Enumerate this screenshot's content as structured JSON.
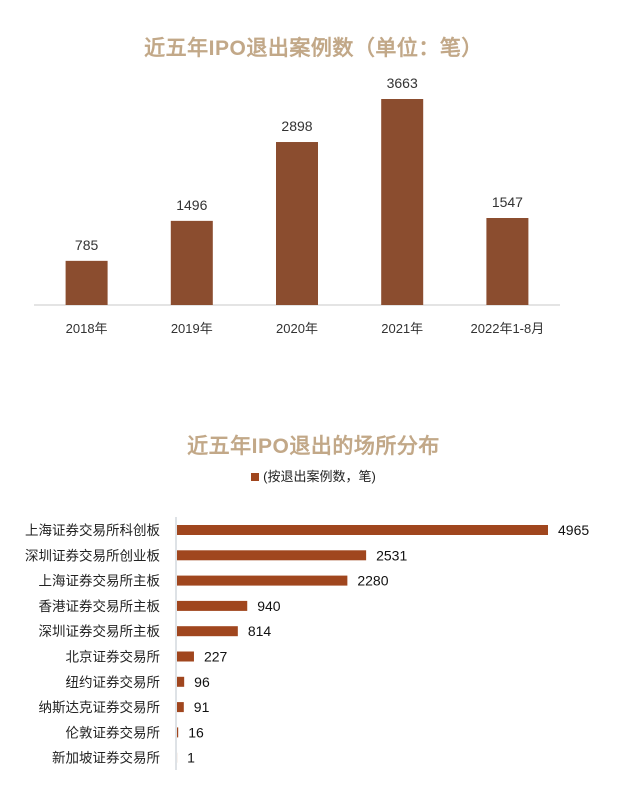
{
  "chart_data": [
    {
      "type": "bar",
      "title": "近五年IPO退出案例数（单位：笔）",
      "categories": [
        "2018年",
        "2019年",
        "2020年",
        "2021年",
        "2022年1-8月"
      ],
      "values": [
        785,
        1496,
        2898,
        3663,
        1547
      ],
      "ylim": [
        0,
        3663
      ],
      "bar_color": "#8b4d2f",
      "grid": false
    },
    {
      "type": "bar",
      "orientation": "horizontal",
      "title": "近五年IPO退出的场所分布",
      "legend": "(按退出案例数，笔)",
      "categories": [
        "上海证券交易所科创板",
        "深圳证券交易所创业板",
        "上海证券交易所主板",
        "香港证券交易所主板",
        "深圳证券交易所主板",
        "北京证券交易所",
        "纽约证券交易所",
        "纳斯达克证券交易所",
        "伦敦证券交易所",
        "新加坡证券交易所"
      ],
      "values": [
        4965,
        2531,
        2280,
        940,
        814,
        227,
        96,
        91,
        16,
        1
      ],
      "xlim": [
        0,
        4965
      ],
      "bar_color": "#a0461e",
      "grid": false
    }
  ]
}
